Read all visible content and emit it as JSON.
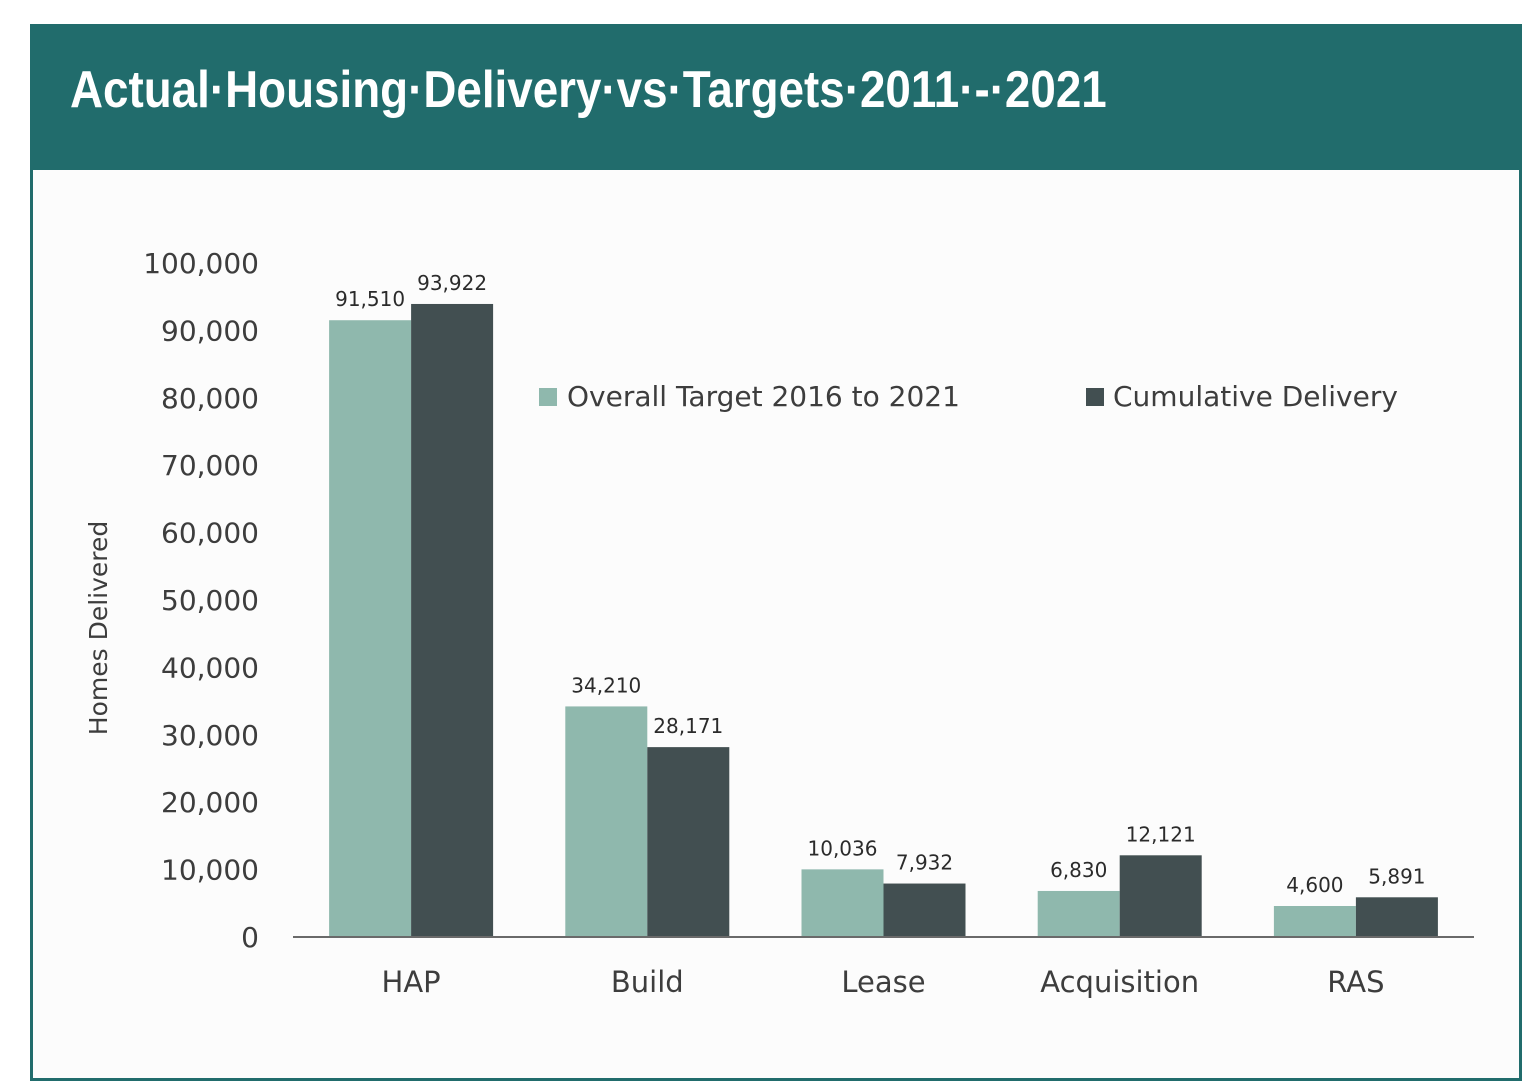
{
  "title": "Actual·Housing·Delivery·vs·Targets·2011·-·2021",
  "colors": {
    "header": "#216c6c",
    "target": "#8fb8ad",
    "delivery": "#424f51",
    "axis": "#3d3d3d"
  },
  "chart_data": {
    "type": "bar",
    "categories": [
      "HAP",
      "Build",
      "Lease",
      "Acquisition",
      "RAS"
    ],
    "series": [
      {
        "name": "Overall Target 2016 to 2021",
        "values": [
          91510,
          34210,
          10036,
          6830,
          4600
        ],
        "labels": [
          "91,510",
          "34,210",
          "10,036",
          "6,830",
          "4,600"
        ],
        "color": "#8fb8ad"
      },
      {
        "name": "Cumulative Delivery",
        "values": [
          93922,
          28171,
          7932,
          12121,
          5891
        ],
        "labels": [
          "93,922",
          "28,171",
          "7,932",
          "12,121",
          "5,891"
        ],
        "color": "#424f51"
      }
    ],
    "xlabel": "",
    "ylabel": "Homes Delivered",
    "ylim": [
      0,
      100000
    ],
    "yticks": [
      0,
      10000,
      20000,
      30000,
      40000,
      50000,
      60000,
      70000,
      80000,
      90000,
      100000
    ],
    "ytick_labels": [
      "0",
      "10,000",
      "20,000",
      "30,000",
      "40,000",
      "50,000",
      "60,000",
      "70,000",
      "80,000",
      "90,000",
      "100,000"
    ],
    "grid": false,
    "legend": "top-right"
  }
}
